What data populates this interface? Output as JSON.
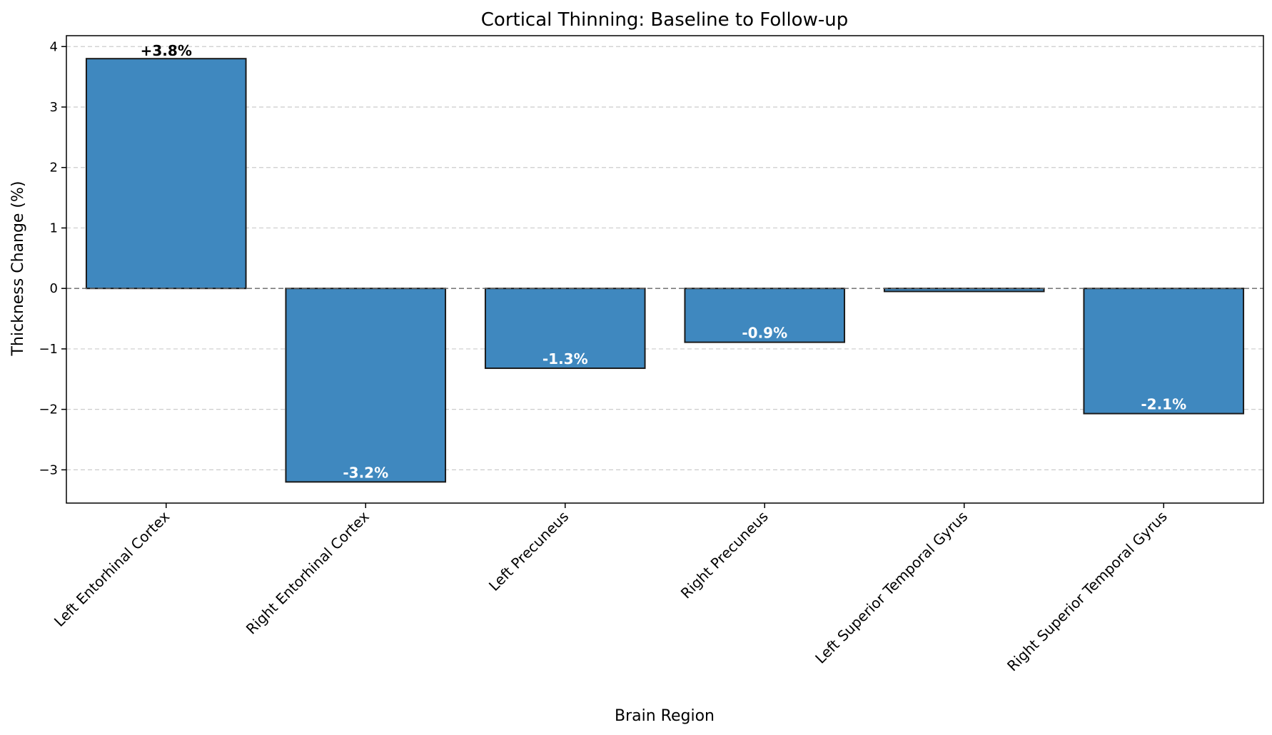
{
  "chart_data": {
    "type": "bar",
    "title": "Cortical Thinning: Baseline to  Follow-up",
    "xlabel": "Brain Region",
    "ylabel": "Thickness Change (%)",
    "categories": [
      "Left Entorhinal Cortex",
      "Right Entorhinal Cortex",
      "Left Precuneus",
      "Right Precuneus",
      "Left Superior Temporal Gyrus",
      "Right Superior Temporal Gyrus"
    ],
    "values": [
      3.8,
      -3.2,
      -1.32,
      -0.89,
      -0.05,
      -2.07
    ],
    "data_labels": [
      "+3.8%",
      "-3.2%",
      "-1.3%",
      "-0.9%",
      "",
      "-2.1%"
    ],
    "ylim": [
      -3.55,
      4.18
    ],
    "yticks": [
      -3,
      -2,
      -1,
      0,
      1,
      2,
      3,
      4
    ],
    "ytick_labels": [
      "−3",
      "−2",
      "−1",
      "0",
      "1",
      "2",
      "3",
      "4"
    ],
    "grid": true,
    "bar_color": "#3f88bf",
    "positive_label_color": "#000000",
    "negative_label_color": "#ffffff"
  }
}
